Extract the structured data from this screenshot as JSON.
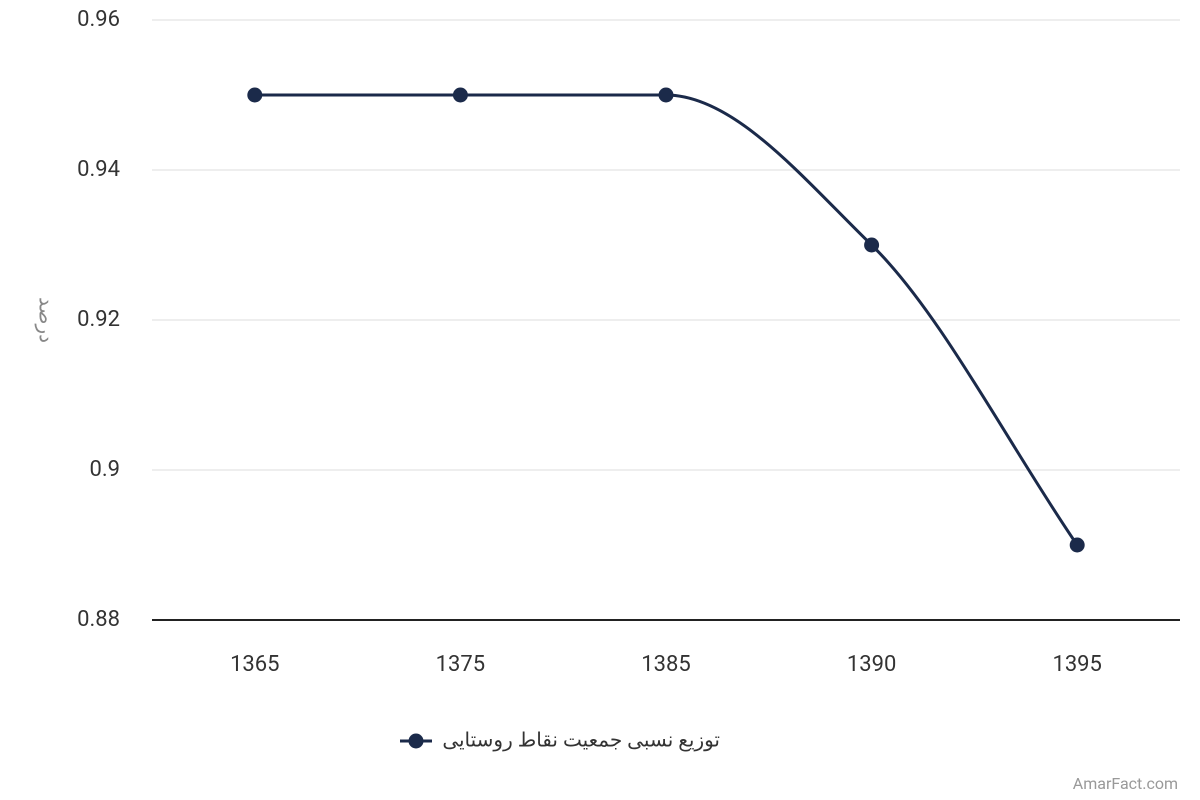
{
  "chart_data": {
    "type": "line",
    "y_label": "درصد",
    "categories": [
      "1365",
      "1375",
      "1385",
      "1390",
      "1395"
    ],
    "series": [
      {
        "name": "توزیع نسبی جمعیت نقاط روستایی",
        "color": "#1b2a4a",
        "values": [
          0.95,
          0.95,
          0.95,
          0.93,
          0.89
        ]
      }
    ],
    "ylim": [
      0.88,
      0.96
    ],
    "yticks": [
      0.88,
      0.9,
      0.92,
      0.94,
      0.96
    ],
    "grid": true,
    "smooth": true,
    "legend": "bottom",
    "credit": "AmarFact.com"
  }
}
